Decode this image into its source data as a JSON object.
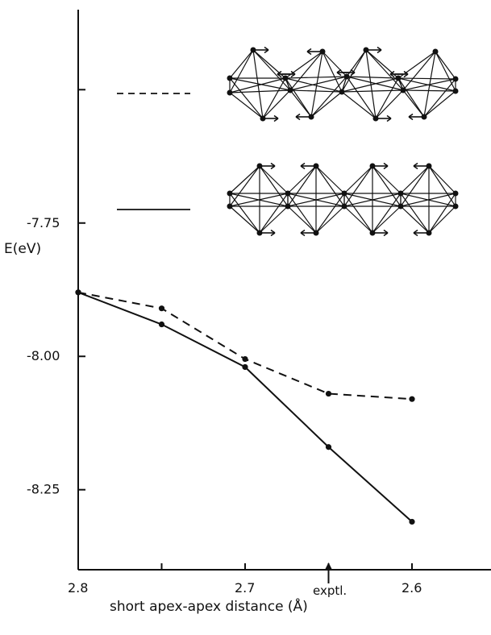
{
  "chart_data": {
    "type": "line",
    "title": "",
    "xlabel": "short  apex-apex distance (Å)",
    "ylabel": "E(eV)",
    "xlim": [
      2.8,
      2.55
    ],
    "ylim": [
      -8.4,
      -7.35
    ],
    "x_ticks": [
      2.8,
      2.75,
      2.7,
      2.65,
      2.6
    ],
    "x_tick_labels": [
      "2.8",
      "",
      "2.7",
      "",
      "2.6"
    ],
    "y_ticks": [
      -7.5,
      -7.75,
      -8.0,
      -8.25
    ],
    "y_tick_labels": [
      "",
      "-7.75",
      "-8.00",
      "-8.25"
    ],
    "annotation": {
      "text": "exptl.",
      "x": 2.65
    },
    "series": [
      {
        "style": "dashed",
        "x": [
          2.8,
          2.75,
          2.7,
          2.65,
          2.6
        ],
        "y": [
          -7.88,
          -7.91,
          -8.005,
          -8.07,
          -8.08
        ]
      },
      {
        "style": "solid",
        "x": [
          2.8,
          2.75,
          2.7,
          2.65,
          2.6
        ],
        "y": [
          -7.88,
          -7.94,
          -8.02,
          -8.17,
          -8.31
        ]
      }
    ],
    "legend": {
      "placement": "top-right",
      "entries": [
        {
          "style": "dashed",
          "icon": "distorted-octahedral-chain-diagram"
        },
        {
          "style": "solid",
          "icon": "regular-octahedral-chain-diagram"
        }
      ]
    }
  }
}
